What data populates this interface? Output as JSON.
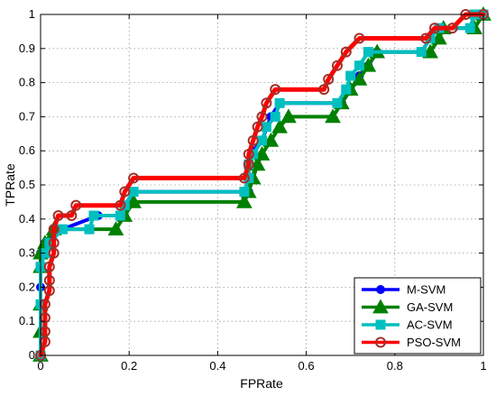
{
  "chart_data": {
    "type": "line",
    "title": "",
    "xlabel": "FPRate",
    "ylabel": "TPRate",
    "xlim": [
      0,
      1
    ],
    "ylim": [
      0,
      1
    ],
    "xticks": [
      "0",
      "0.2",
      "0.4",
      "0.6",
      "0.8",
      "1"
    ],
    "yticks": [
      "0",
      "0.1",
      "0.2",
      "0.3",
      "0.4",
      "0.5",
      "0.6",
      "0.7",
      "0.8",
      "0.9",
      "1"
    ],
    "grid": true,
    "legend_position": "bottom-right",
    "series": [
      {
        "name": "M-SVM",
        "color": "#0000ff",
        "marker": "circle",
        "points": [
          [
            0,
            0
          ],
          [
            0,
            0.2
          ],
          [
            0,
            0.3
          ],
          [
            0.01,
            0.33
          ],
          [
            0.05,
            0.37
          ],
          [
            0.13,
            0.41
          ],
          [
            0.18,
            0.41
          ],
          [
            0.19,
            0.44
          ],
          [
            0.21,
            0.48
          ],
          [
            0.47,
            0.48
          ],
          [
            0.47,
            0.52
          ],
          [
            0.47,
            0.56
          ],
          [
            0.48,
            0.6
          ],
          [
            0.5,
            0.63
          ],
          [
            0.52,
            0.7
          ],
          [
            0.54,
            0.74
          ],
          [
            0.68,
            0.74
          ],
          [
            0.7,
            0.78
          ],
          [
            0.72,
            0.82
          ],
          [
            0.74,
            0.85
          ],
          [
            0.76,
            0.89
          ],
          [
            0.86,
            0.89
          ],
          [
            0.88,
            0.93
          ],
          [
            0.9,
            0.96
          ],
          [
            0.97,
            0.96
          ],
          [
            0.98,
            1
          ],
          [
            1,
            1
          ]
        ]
      },
      {
        "name": "GA-SVM",
        "color": "#008000",
        "marker": "triangle",
        "points": [
          [
            0,
            0
          ],
          [
            0,
            0.07
          ],
          [
            0,
            0.15
          ],
          [
            0,
            0.26
          ],
          [
            0,
            0.3
          ],
          [
            0.01,
            0.33
          ],
          [
            0.03,
            0.37
          ],
          [
            0.17,
            0.37
          ],
          [
            0.19,
            0.41
          ],
          [
            0.21,
            0.45
          ],
          [
            0.46,
            0.45
          ],
          [
            0.47,
            0.48
          ],
          [
            0.48,
            0.52
          ],
          [
            0.49,
            0.56
          ],
          [
            0.5,
            0.59
          ],
          [
            0.52,
            0.63
          ],
          [
            0.54,
            0.67
          ],
          [
            0.56,
            0.7
          ],
          [
            0.66,
            0.7
          ],
          [
            0.68,
            0.74
          ],
          [
            0.7,
            0.78
          ],
          [
            0.72,
            0.81
          ],
          [
            0.74,
            0.85
          ],
          [
            0.76,
            0.89
          ],
          [
            0.88,
            0.89
          ],
          [
            0.9,
            0.93
          ],
          [
            0.91,
            0.96
          ],
          [
            0.98,
            0.96
          ],
          [
            1,
            1
          ]
        ]
      },
      {
        "name": "AC-SVM",
        "color": "#00bfbf",
        "marker": "square",
        "points": [
          [
            0,
            0
          ],
          [
            0,
            0.15
          ],
          [
            0,
            0.26
          ],
          [
            0.01,
            0.3
          ],
          [
            0.02,
            0.33
          ],
          [
            0.05,
            0.37
          ],
          [
            0.11,
            0.37
          ],
          [
            0.12,
            0.41
          ],
          [
            0.18,
            0.41
          ],
          [
            0.19,
            0.44
          ],
          [
            0.21,
            0.48
          ],
          [
            0.46,
            0.48
          ],
          [
            0.47,
            0.52
          ],
          [
            0.47,
            0.56
          ],
          [
            0.48,
            0.59
          ],
          [
            0.5,
            0.63
          ],
          [
            0.51,
            0.67
          ],
          [
            0.53,
            0.7
          ],
          [
            0.54,
            0.74
          ],
          [
            0.67,
            0.74
          ],
          [
            0.69,
            0.78
          ],
          [
            0.7,
            0.82
          ],
          [
            0.72,
            0.85
          ],
          [
            0.74,
            0.89
          ],
          [
            0.86,
            0.89
          ],
          [
            0.88,
            0.93
          ],
          [
            0.9,
            0.96
          ],
          [
            0.97,
            0.96
          ],
          [
            0.98,
            1
          ],
          [
            1,
            1
          ]
        ]
      },
      {
        "name": "PSO-SVM",
        "color": "#ff0000",
        "marker": "circle-open",
        "edge_color": "#a0302a",
        "points": [
          [
            0,
            0
          ],
          [
            0.01,
            0.04
          ],
          [
            0.01,
            0.07
          ],
          [
            0.01,
            0.11
          ],
          [
            0.01,
            0.15
          ],
          [
            0.02,
            0.19
          ],
          [
            0.02,
            0.22
          ],
          [
            0.02,
            0.26
          ],
          [
            0.03,
            0.3
          ],
          [
            0.03,
            0.33
          ],
          [
            0.03,
            0.37
          ],
          [
            0.04,
            0.41
          ],
          [
            0.07,
            0.41
          ],
          [
            0.08,
            0.44
          ],
          [
            0.18,
            0.44
          ],
          [
            0.19,
            0.48
          ],
          [
            0.21,
            0.52
          ],
          [
            0.46,
            0.52
          ],
          [
            0.47,
            0.56
          ],
          [
            0.47,
            0.59
          ],
          [
            0.48,
            0.63
          ],
          [
            0.49,
            0.67
          ],
          [
            0.5,
            0.7
          ],
          [
            0.51,
            0.74
          ],
          [
            0.53,
            0.78
          ],
          [
            0.64,
            0.78
          ],
          [
            0.65,
            0.81
          ],
          [
            0.67,
            0.85
          ],
          [
            0.69,
            0.89
          ],
          [
            0.72,
            0.93
          ],
          [
            0.87,
            0.93
          ],
          [
            0.89,
            0.96
          ],
          [
            0.93,
            0.96
          ],
          [
            0.96,
            1
          ],
          [
            1,
            1
          ]
        ]
      }
    ]
  }
}
